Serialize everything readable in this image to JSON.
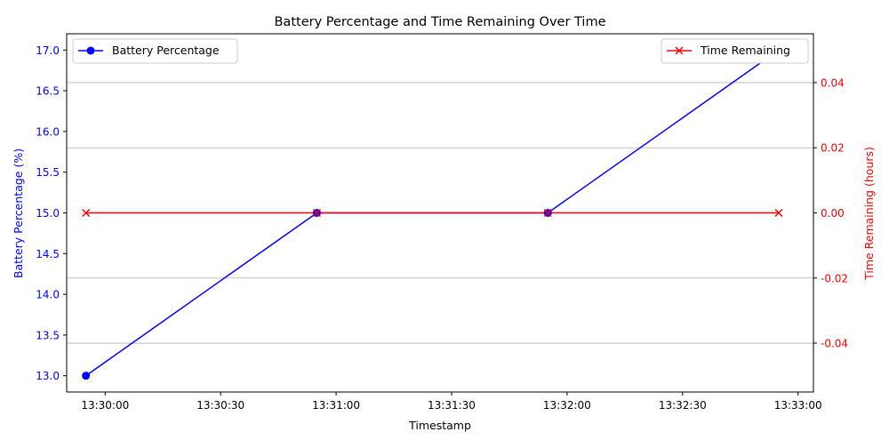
{
  "chart_data": {
    "type": "line",
    "title": "Battery Percentage and Time Remaining Over Time",
    "xlabel": "Timestamp",
    "ylabel_left": "Battery Percentage (%)",
    "ylabel_right": "Time Remaining (hours)",
    "x": [
      "13:29:55",
      "13:30:55",
      "13:31:55",
      "13:32:55"
    ],
    "x_ticks": [
      "13:30:00",
      "13:30:30",
      "13:31:00",
      "13:31:30",
      "13:32:00",
      "13:32:30",
      "13:33:00"
    ],
    "xlim": [
      "13:29:50",
      "13:33:04"
    ],
    "ylim_left": [
      12.8,
      17.2
    ],
    "yticks_left": [
      "13.0",
      "13.5",
      "14.0",
      "14.5",
      "15.0",
      "15.5",
      "16.0",
      "16.5",
      "17.0"
    ],
    "ylim_right": [
      -0.055,
      0.055
    ],
    "yticks_right": [
      "-0.04",
      "-0.02",
      "0.00",
      "0.02",
      "0.04"
    ],
    "grid": "horizontal (right axis)",
    "series": [
      {
        "name": "Battery Percentage",
        "axis": "left",
        "values": [
          13,
          15,
          15,
          17
        ],
        "color": "#0000ff",
        "marker": "circle",
        "legend": "top-left"
      },
      {
        "name": "Time Remaining",
        "axis": "right",
        "values": [
          0,
          0,
          0,
          0
        ],
        "color": "#ff0000",
        "marker": "x",
        "legend": "top-right"
      }
    ]
  }
}
